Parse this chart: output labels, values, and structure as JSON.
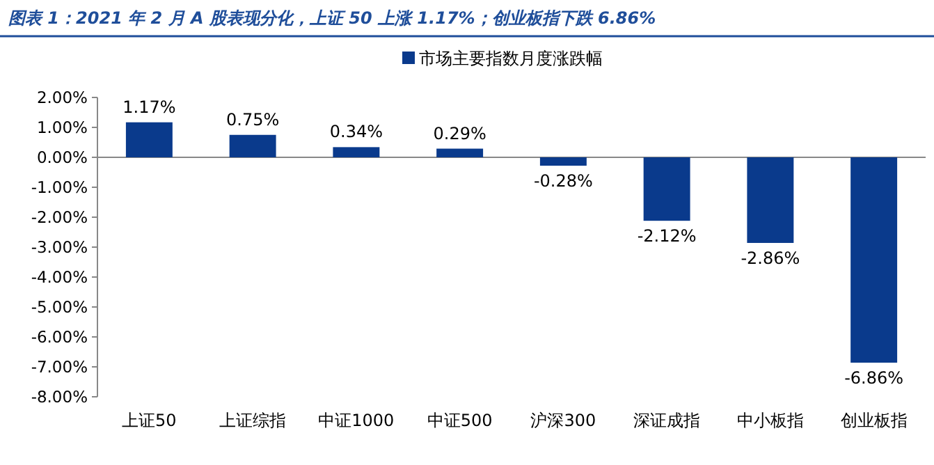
{
  "chart_data": {
    "type": "bar",
    "title": "图表 1：2021 年 2 月 A 股表现分化，上证 50 上涨 1.17%；创业板指下跌 6.86%",
    "categories": [
      "上证50",
      "上证综指",
      "中证1000",
      "中证500",
      "沪深300",
      "深证成指",
      "中小板指",
      "创业板指"
    ],
    "series": [
      {
        "name": "市场主要指数月度涨跌幅",
        "color": "#0a3a8c",
        "values": [
          1.17,
          0.75,
          0.34,
          0.29,
          -0.28,
          -2.12,
          -2.86,
          -6.86
        ],
        "value_labels": [
          "1.17%",
          "0.75%",
          "0.34%",
          "0.29%",
          "-0.28%",
          "-2.12%",
          "-2.86%",
          "-6.86%"
        ]
      }
    ],
    "ylim": [
      -8,
      2
    ],
    "yticks": [
      {
        "value": 2,
        "label": "2.00%"
      },
      {
        "value": 1,
        "label": "1.00%"
      },
      {
        "value": 0,
        "label": "0.00%"
      },
      {
        "value": -1,
        "label": "-1.00%"
      },
      {
        "value": -2,
        "label": "-2.00%"
      },
      {
        "value": -3,
        "label": "-3.00%"
      },
      {
        "value": -4,
        "label": "-4.00%"
      },
      {
        "value": -5,
        "label": "-5.00%"
      },
      {
        "value": -6,
        "label": "-6.00%"
      },
      {
        "value": -7,
        "label": "-7.00%"
      },
      {
        "value": -8,
        "label": "-8.00%"
      }
    ],
    "legend": "top"
  }
}
